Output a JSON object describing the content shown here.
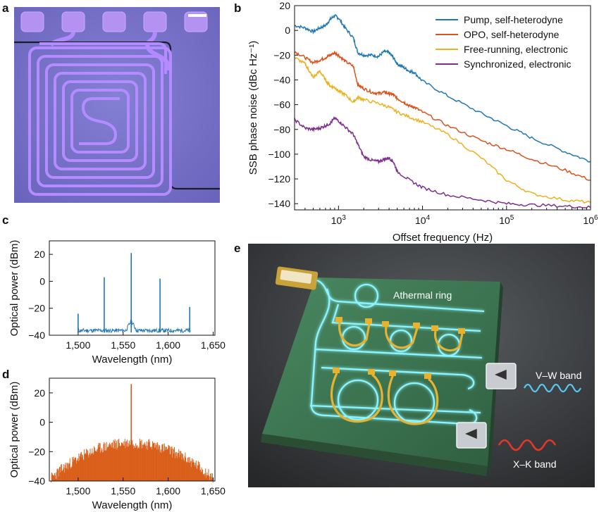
{
  "panels": {
    "a": {
      "letter": "a"
    },
    "b": {
      "letter": "b"
    },
    "c": {
      "letter": "c"
    },
    "d": {
      "letter": "d"
    },
    "e": {
      "letter": "e"
    }
  },
  "chart_data": [
    {
      "id": "b",
      "type": "line",
      "xlabel": "Offset frequency (Hz)",
      "ylabel": "SSB phase noise (dBc Hz⁻¹)",
      "xscale": "log",
      "xlim": [
        300,
        1000000
      ],
      "ylim": [
        -145,
        20
      ],
      "xtick_labels": [
        {
          "value": 1000,
          "base": "10",
          "exp": "3"
        },
        {
          "value": 10000,
          "base": "10",
          "exp": "4"
        },
        {
          "value": 100000,
          "base": "10",
          "exp": "5"
        },
        {
          "value": 1000000,
          "base": "10",
          "exp": "6"
        }
      ],
      "yticks": [
        20,
        0,
        -20,
        -40,
        -60,
        -80,
        -100,
        -120,
        -140
      ],
      "ytick_labels": [
        "20",
        "0",
        "−20",
        "−40",
        "−60",
        "−80",
        "−100",
        "−120",
        "−140"
      ],
      "legend_position": "top-right",
      "series": [
        {
          "name": "Pump, self-heterodyne",
          "color": "#1f77b4",
          "x": [
            300,
            400,
            500,
            600,
            700,
            800,
            900,
            1000,
            1200,
            1500,
            1700,
            2000,
            2500,
            3000,
            3500,
            4000,
            4500,
            5000,
            6000,
            7000,
            8000,
            10000,
            20000,
            50000,
            100000,
            200000,
            500000,
            1000000
          ],
          "y": [
            4,
            2,
            -1,
            2,
            4,
            9,
            12,
            10,
            2,
            -6,
            -18,
            -20,
            -20,
            -21,
            -17,
            -18,
            -22,
            -27,
            -30,
            -33,
            -34,
            -41,
            -53,
            -67,
            -77,
            -87,
            -98,
            -106
          ]
        },
        {
          "name": "OPO, self-heterodyne",
          "color": "#d9541e",
          "x": [
            300,
            400,
            500,
            600,
            700,
            800,
            900,
            1000,
            1200,
            1500,
            1700,
            2000,
            2500,
            3000,
            3500,
            4000,
            4500,
            5000,
            6000,
            7000,
            8000,
            10000,
            20000,
            50000,
            100000,
            200000,
            500000,
            1000000
          ],
          "y": [
            -17,
            -22,
            -26,
            -24,
            -22,
            -20,
            -18,
            -20,
            -25,
            -29,
            -44,
            -47,
            -50,
            -51,
            -50,
            -51,
            -52,
            -55,
            -58,
            -61,
            -62,
            -66,
            -77,
            -89,
            -96,
            -104,
            -113,
            -121
          ]
        },
        {
          "name": "Free-running, electronic",
          "color": "#edb120",
          "x": [
            300,
            400,
            450,
            500,
            600,
            700,
            800,
            900,
            1000,
            1200,
            1500,
            1700,
            2000,
            3000,
            4000,
            5000,
            7000,
            10000,
            20000,
            50000,
            100000,
            200000,
            500000,
            1000000
          ],
          "y": [
            -22,
            -27,
            -33,
            -38,
            -33,
            -40,
            -45,
            -46,
            -49,
            -52,
            -58,
            -54,
            -56,
            -59,
            -62,
            -66,
            -70,
            -74,
            -84,
            -103,
            -121,
            -132,
            -137,
            -139
          ]
        },
        {
          "name": "Synchronized, electronic",
          "color": "#7e2f8e",
          "x": [
            300,
            400,
            500,
            600,
            700,
            800,
            900,
            1000,
            1200,
            1500,
            1700,
            2000,
            2500,
            3000,
            3500,
            4000,
            4500,
            5000,
            7000,
            10000,
            20000,
            50000,
            100000,
            200000,
            500000,
            1000000
          ],
          "y": [
            -72,
            -79,
            -80,
            -79,
            -77,
            -75,
            -71,
            -73,
            -78,
            -84,
            -92,
            -102,
            -105,
            -106,
            -104,
            -103,
            -106,
            -114,
            -121,
            -127,
            -133,
            -137,
            -140,
            -141,
            -142,
            -143
          ]
        }
      ]
    },
    {
      "id": "c",
      "type": "line",
      "xlabel": "Wavelength (nm)",
      "ylabel": "Optical power (dBm)",
      "xlim": [
        1468,
        1652
      ],
      "ylim": [
        -40,
        30
      ],
      "xticks": [
        1500,
        1550,
        1600,
        1650
      ],
      "xtick_labels": [
        "1,500",
        "1,550",
        "1,600",
        "1,650"
      ],
      "yticks": [
        20,
        0,
        -20,
        -40
      ],
      "ytick_labels": [
        "20",
        "0",
        "−20",
        "−40"
      ],
      "color": "#1f77b4",
      "noise_floor_dbm": -38,
      "spectrum_range_nm": [
        1500,
        1625
      ],
      "peaks": [
        {
          "x": 1500,
          "y": -24
        },
        {
          "x": 1529,
          "y": 3
        },
        {
          "x": 1559,
          "y": 21
        },
        {
          "x": 1591,
          "y": 2
        },
        {
          "x": 1624,
          "y": -19
        }
      ]
    },
    {
      "id": "d",
      "type": "line",
      "xlabel": "Wavelength (nm)",
      "ylabel": "Optical power (dBm)",
      "xlim": [
        1468,
        1652
      ],
      "ylim": [
        -40,
        30
      ],
      "xticks": [
        1500,
        1550,
        1600,
        1650
      ],
      "xtick_labels": [
        "1,500",
        "1,550",
        "1,600",
        "1,650"
      ],
      "yticks": [
        20,
        0,
        -20,
        -40
      ],
      "ytick_labels": [
        "20",
        "0",
        "−20",
        "−40"
      ],
      "color": "#d95f1a",
      "envelope_nm": [
        1470,
        1650
      ],
      "envelope_peak_dbm": -14,
      "envelope_edge_dbm": -38,
      "center_peak": {
        "x": 1559,
        "y": 26
      }
    }
  ],
  "labels_e": {
    "athermal_ring": "Athermal ring",
    "vw_band": "V–W band",
    "xk_band": "X–K band"
  },
  "colors": {
    "micro_bg": "#7a74c8",
    "waveguide": "#b28aff",
    "render_bg": "#36383a",
    "chip": "#3f7a55",
    "glow": "#7ff0ff",
    "gold": "#e6b331",
    "wave_blue": "#54c8f0",
    "wave_red": "#e8362a"
  }
}
